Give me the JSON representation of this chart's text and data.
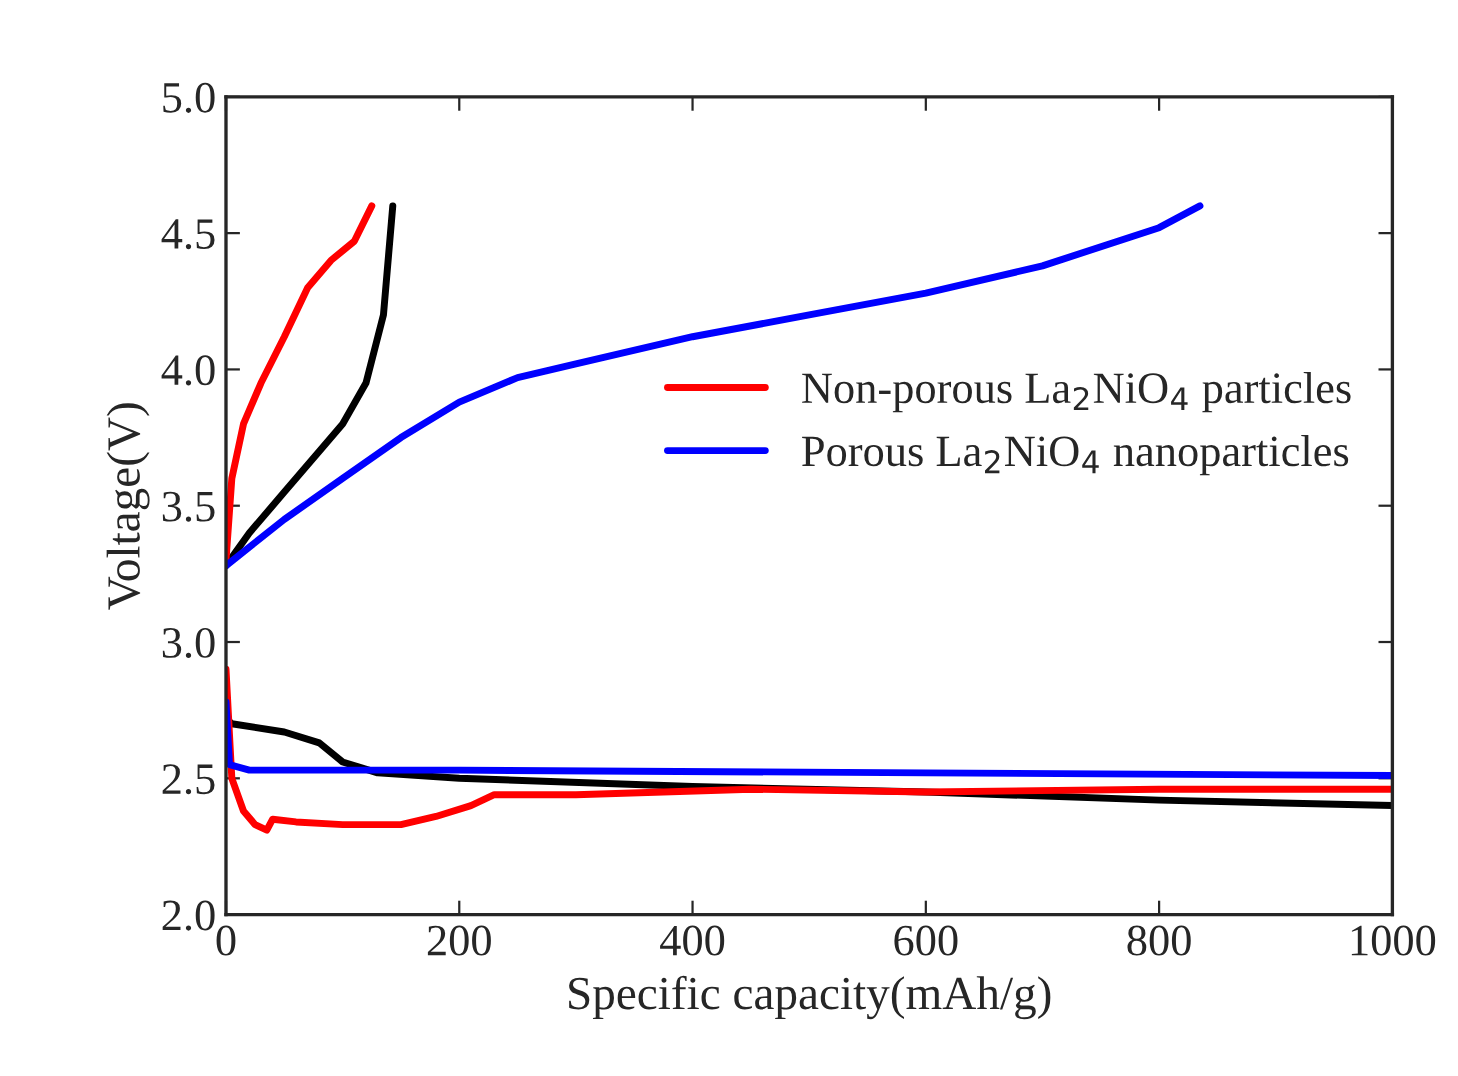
{
  "chart_data": {
    "type": "line",
    "xlabel": "Specific capacity(mAh/g)",
    "ylabel": "Voltage(V)",
    "xlim": [
      0,
      1000
    ],
    "xticks": [
      0,
      200,
      400,
      600,
      800,
      1000
    ],
    "ylim": [
      2.0,
      5.0
    ],
    "yticks": [
      {
        "value": 2.0,
        "label": "2.0"
      },
      2.5,
      {
        "value": 3.0,
        "label": "3.0"
      },
      3.5,
      {
        "value": 4.0,
        "label": "4.0"
      },
      4.5,
      {
        "value": 5.0,
        "label": "5.0"
      }
    ],
    "grid": false,
    "legend": "right",
    "marker": "none",
    "line_style": "solid",
    "series": [
      {
        "color": "#000000",
        "x": [
          0,
          20,
          50,
          80,
          100,
          120,
          135,
          143
        ],
        "values": [
          3.28,
          3.4,
          3.55,
          3.7,
          3.8,
          3.95,
          4.2,
          4.6
        ]
      },
      {
        "name": "Non-porous La$_{2}$NiO$_{4}$ particles",
        "color": "#ff0000",
        "x": [
          0,
          5,
          15,
          30,
          50,
          70,
          90,
          110,
          125
        ],
        "values": [
          3.3,
          3.6,
          3.8,
          3.95,
          4.12,
          4.3,
          4.4,
          4.47,
          4.6
        ]
      },
      {
        "name": "Porous La$_{2}$NiO$_{4}$ nanoparticles",
        "color": "#0000ff",
        "x": [
          0,
          50,
          100,
          150,
          200,
          250,
          300,
          400,
          500,
          600,
          700,
          800,
          835
        ],
        "values": [
          3.28,
          3.45,
          3.6,
          3.75,
          3.88,
          3.97,
          4.02,
          4.12,
          4.2,
          4.28,
          4.38,
          4.52,
          4.6
        ]
      },
      {
        "color": "#000000",
        "x": [
          0,
          5,
          50,
          80,
          100,
          130,
          200,
          400,
          600,
          800,
          1000
        ],
        "values": [
          2.72,
          2.7,
          2.67,
          2.63,
          2.56,
          2.52,
          2.5,
          2.47,
          2.45,
          2.42,
          2.4
        ]
      },
      {
        "color": "#ff0000",
        "x": [
          0,
          5,
          15,
          25,
          35,
          40,
          60,
          100,
          150,
          180,
          210,
          230,
          300,
          450,
          600,
          800,
          1000
        ],
        "values": [
          2.9,
          2.5,
          2.38,
          2.33,
          2.31,
          2.35,
          2.34,
          2.33,
          2.33,
          2.36,
          2.4,
          2.44,
          2.44,
          2.46,
          2.45,
          2.46,
          2.46
        ]
      },
      {
        "color": "#0000ff",
        "x": [
          0,
          3,
          20,
          200,
          600,
          1000
        ],
        "values": [
          2.78,
          2.55,
          2.53,
          2.53,
          2.52,
          2.51
        ]
      }
    ]
  }
}
